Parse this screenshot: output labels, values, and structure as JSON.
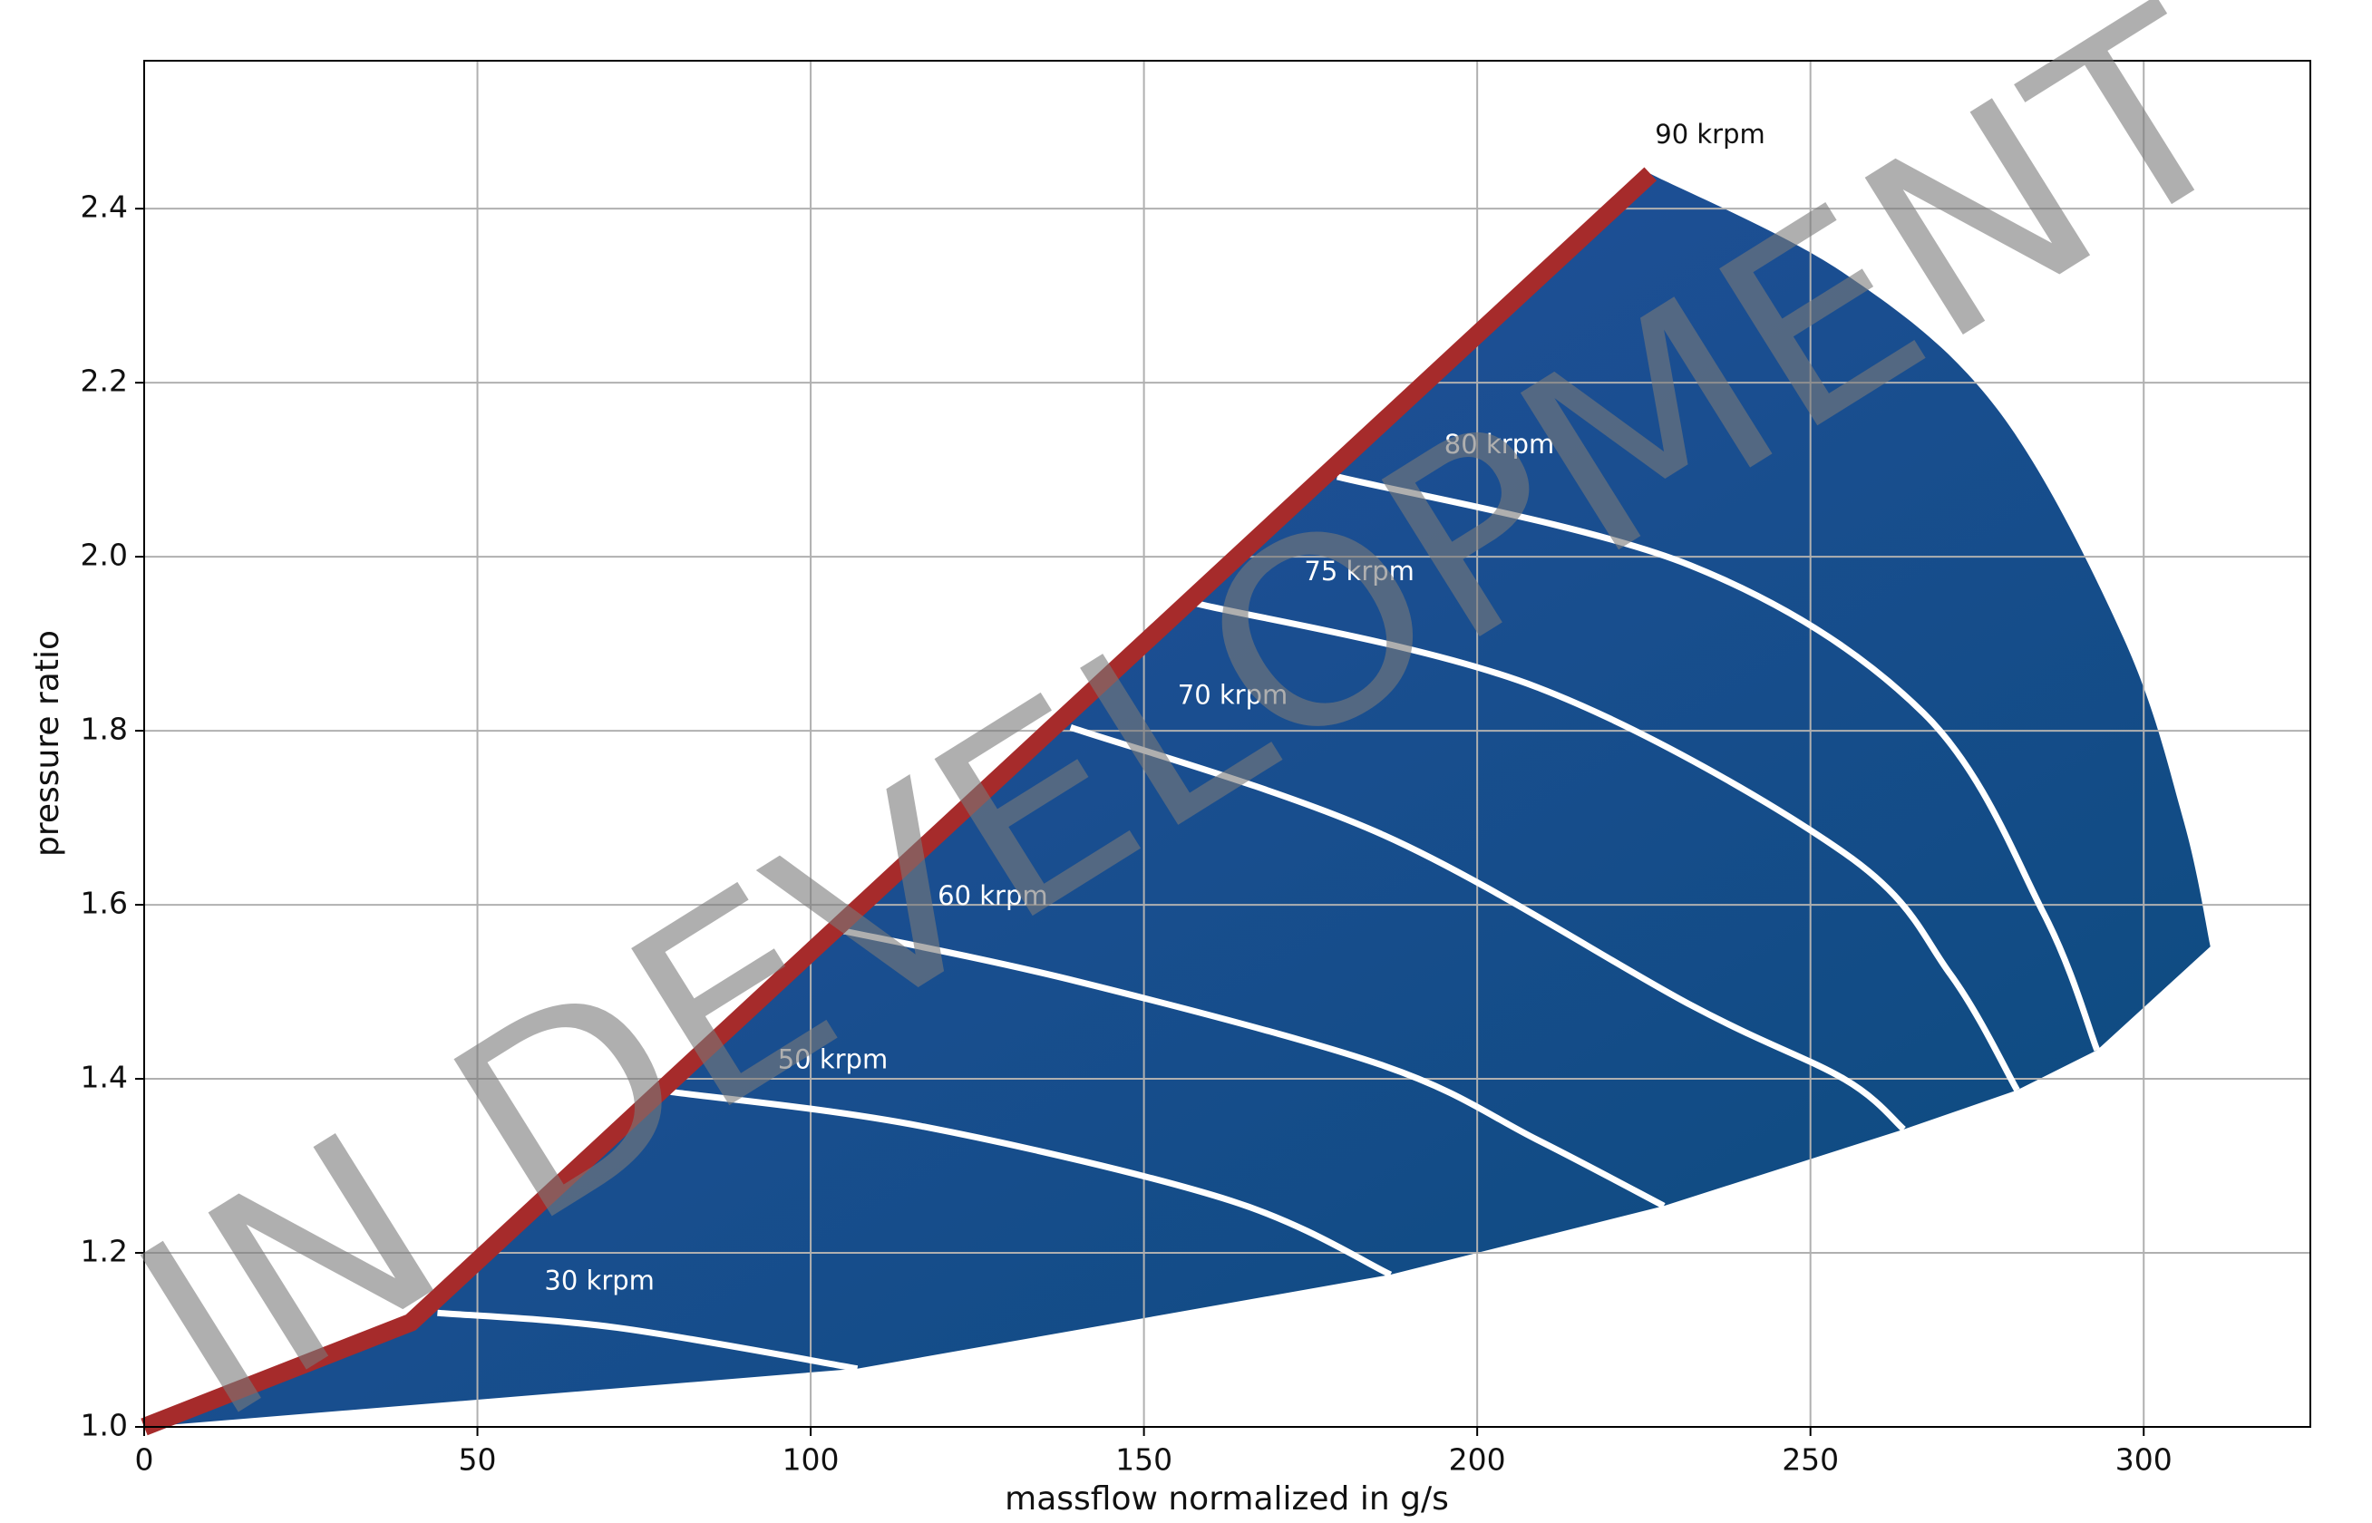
{
  "chart_data": {
    "type": "line",
    "xlabel": "massflow normalized in g/s",
    "ylabel": "pressure ratio",
    "watermark": "IN DEVELOPMENT",
    "xlim": [
      0,
      325
    ],
    "ylim": [
      1.0,
      2.57
    ],
    "xticks": [
      0,
      50,
      100,
      150,
      200,
      250,
      300
    ],
    "yticks": [
      {
        "value": 1.0,
        "label": "1.0"
      },
      1.2,
      1.4,
      1.6,
      1.8,
      {
        "value": 2.0,
        "label": "2.0"
      },
      2.2,
      2.4
    ],
    "grid": true,
    "fill_colors": [
      "#2752a2",
      "#0b4a7c"
    ],
    "surge_line": {
      "color": "#a62b2b",
      "x": [
        0,
        40,
        226
      ],
      "values": [
        1.0,
        1.12,
        2.44
      ]
    },
    "choke_line": {
      "x": [
        0,
        107,
        187,
        228,
        264,
        281,
        293,
        310
      ],
      "values": [
        1.0,
        1.067,
        1.175,
        1.254,
        1.342,
        1.387,
        1.433,
        1.552
      ]
    },
    "series": [
      {
        "name": "30 krpm",
        "color": "#ffffff",
        "x": [
          44,
          71,
          107
        ],
        "values": [
          1.131,
          1.114,
          1.067
        ]
      },
      {
        "name": "50 krpm",
        "color": "#ffffff",
        "x": [
          79,
          117,
          163,
          187
        ],
        "values": [
          1.385,
          1.345,
          1.26,
          1.175
        ]
      },
      {
        "name": "60 krpm",
        "color": "#ffffff",
        "x": [
          103,
          140,
          186,
          209,
          228
        ],
        "values": [
          1.573,
          1.512,
          1.415,
          1.33,
          1.254
        ]
      },
      {
        "name": "70 krpm",
        "color": "#ffffff",
        "x": [
          139,
          186,
          232,
          255,
          264
        ],
        "values": [
          1.804,
          1.68,
          1.485,
          1.4,
          1.342
        ]
      },
      {
        "name": "75 krpm",
        "color": "#ffffff",
        "x": [
          158,
          209,
          255,
          271,
          281
        ],
        "values": [
          1.946,
          1.85,
          1.66,
          1.52,
          1.387
        ]
      },
      {
        "name": "80 krpm",
        "color": "#ffffff",
        "x": [
          179,
          232,
          267,
          285,
          293
        ],
        "values": [
          2.092,
          1.99,
          1.82,
          1.59,
          1.433
        ]
      },
      {
        "name": "90 krpm",
        "x": [
          226,
          255,
          278,
          297,
          306,
          310
        ],
        "values": [
          2.44,
          2.326,
          2.17,
          1.906,
          1.696,
          1.552
        ]
      }
    ]
  }
}
